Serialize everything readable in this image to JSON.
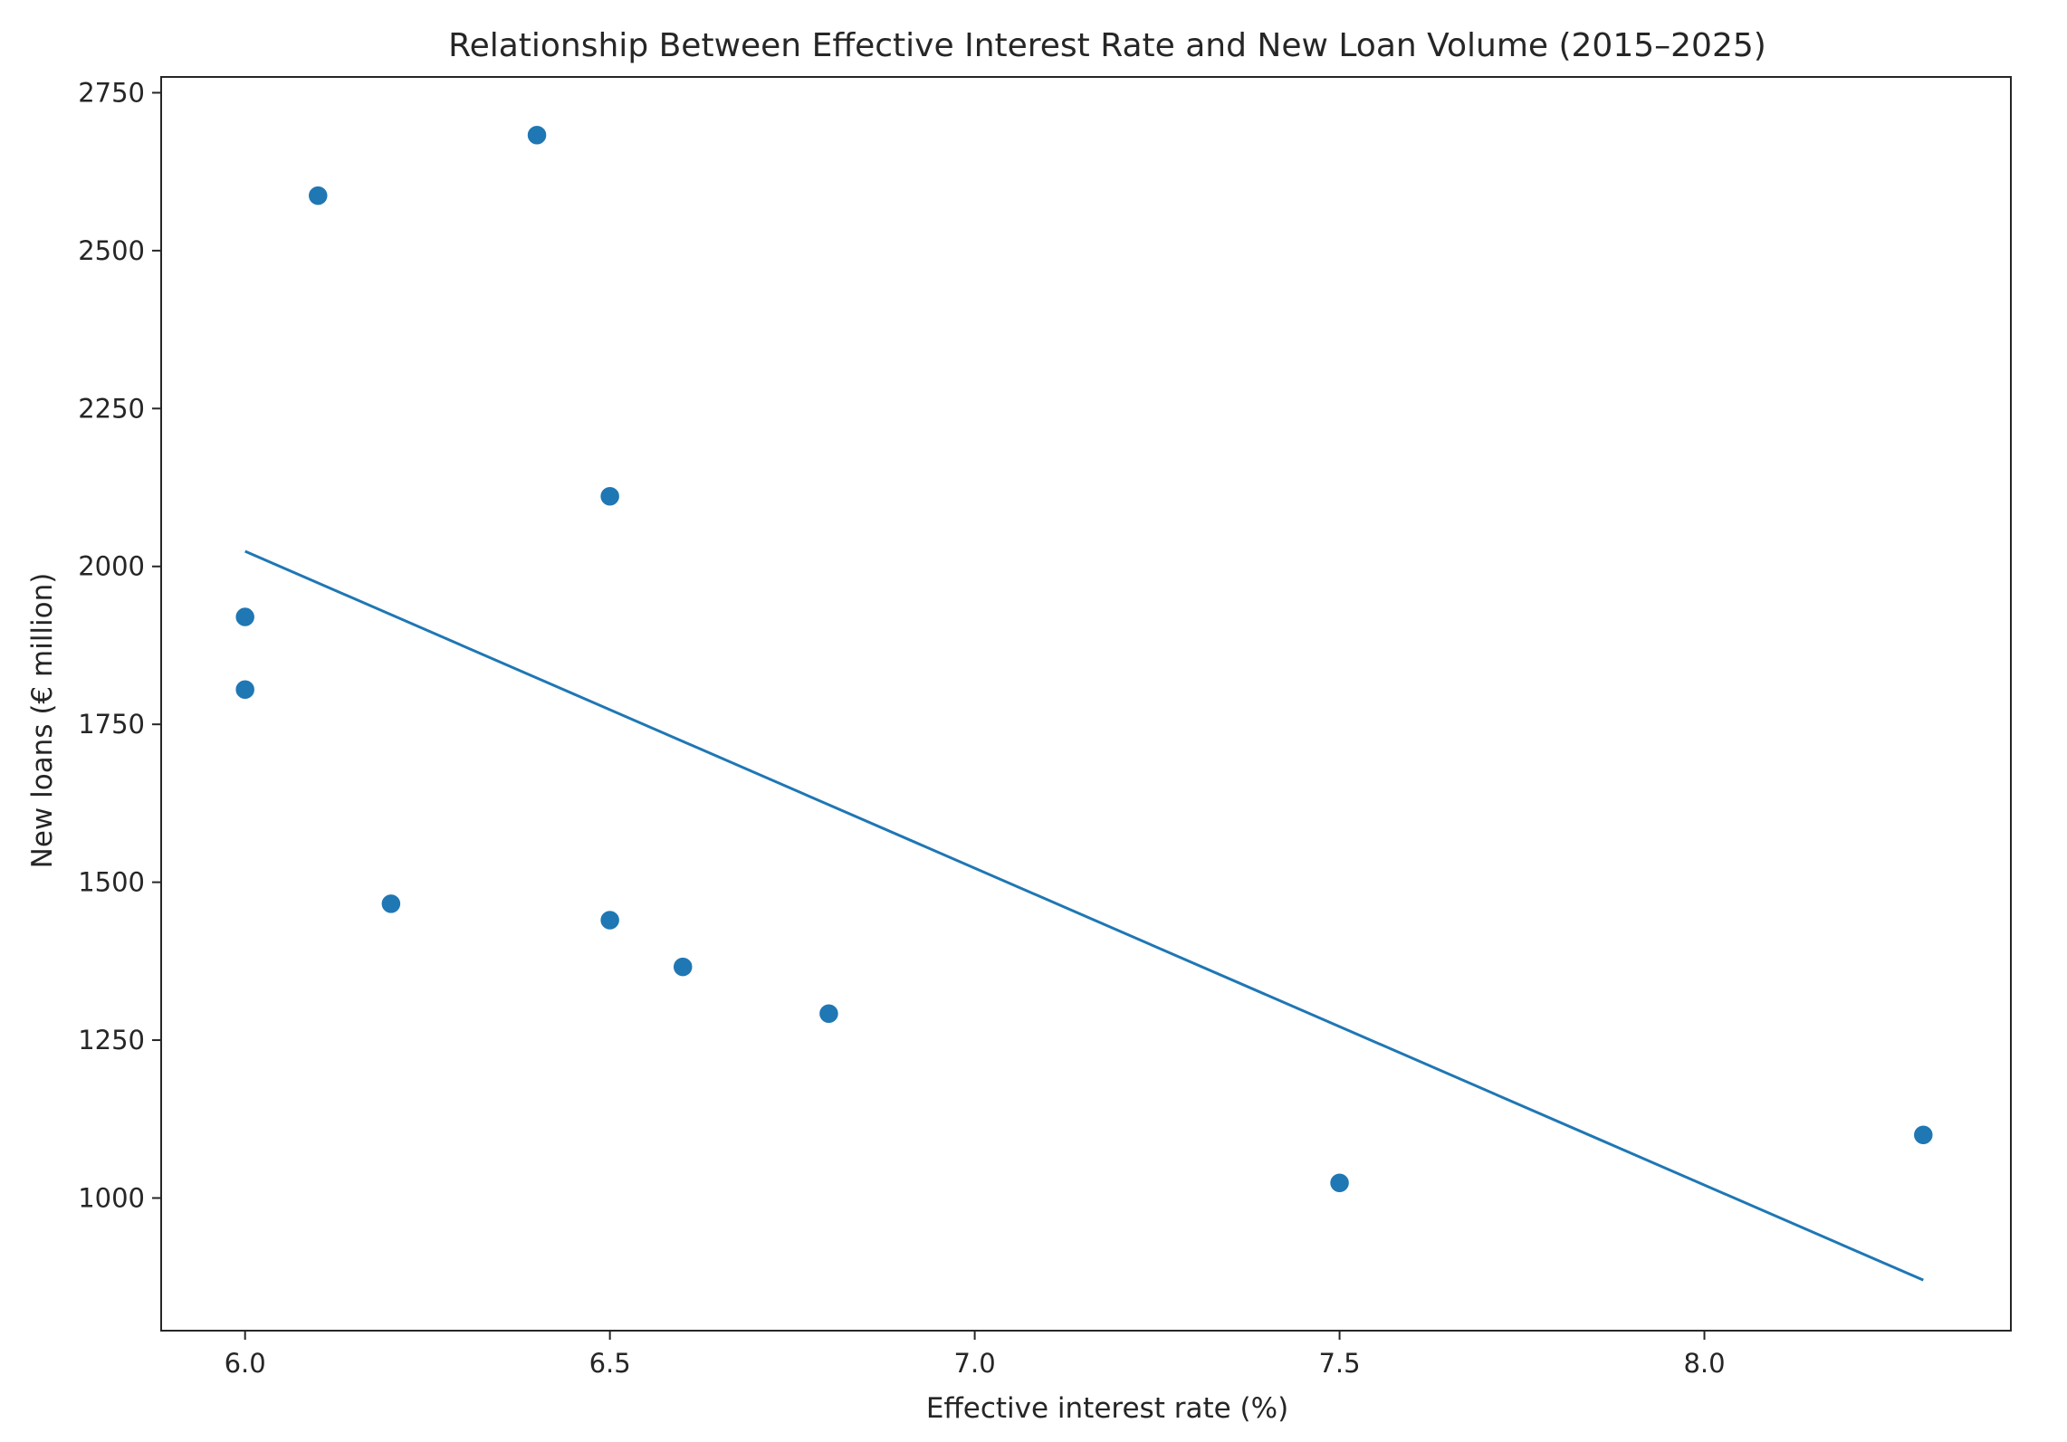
{
  "chart_data": {
    "type": "scatter",
    "title": "Relationship Between Effective Interest Rate and New Loan Volume (2015–2025)",
    "xlabel": "Effective interest rate (%)",
    "ylabel": "New loans (€ million)",
    "xlim": [
      5.885,
      8.42
    ],
    "ylim": [
      790,
      2775
    ],
    "x_ticks": [
      6.0,
      6.5,
      7.0,
      7.5,
      8.0
    ],
    "x_tick_labels": [
      "6.0",
      "6.5",
      "7.0",
      "7.5",
      "8.0"
    ],
    "y_ticks": [
      1000,
      1250,
      1500,
      1750,
      2000,
      2250,
      2500,
      2750
    ],
    "y_tick_labels": [
      "1000",
      "1250",
      "1500",
      "1750",
      "2000",
      "2250",
      "2500",
      "2750"
    ],
    "grid": false,
    "legend": "none",
    "series": [
      {
        "type": "scatter",
        "color": "#1f77b4",
        "points": [
          {
            "x": 6.0,
            "y": 1920
          },
          {
            "x": 6.0,
            "y": 1805
          },
          {
            "x": 6.1,
            "y": 2587
          },
          {
            "x": 6.2,
            "y": 1466
          },
          {
            "x": 6.4,
            "y": 2683
          },
          {
            "x": 6.5,
            "y": 2111
          },
          {
            "x": 6.5,
            "y": 1440
          },
          {
            "x": 6.6,
            "y": 1366
          },
          {
            "x": 6.8,
            "y": 1292
          },
          {
            "x": 7.5,
            "y": 1024
          },
          {
            "x": 8.3,
            "y": 1100
          }
        ]
      },
      {
        "type": "line",
        "color": "#1f77b4",
        "points": [
          {
            "x": 6.0,
            "y": 2024
          },
          {
            "x": 8.3,
            "y": 870
          }
        ]
      }
    ]
  }
}
